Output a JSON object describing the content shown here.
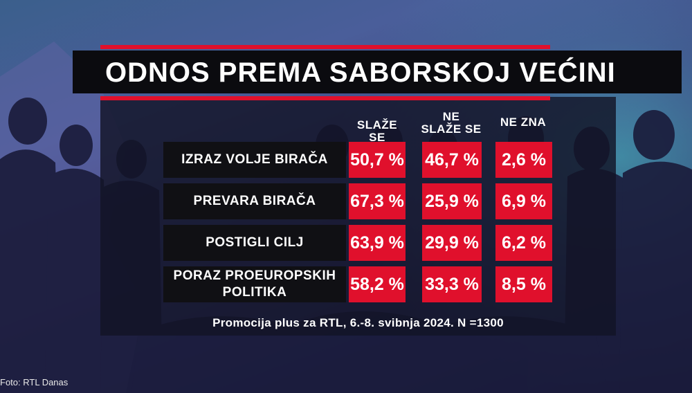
{
  "title": "ODNOS PREMA SABORSKOJ VEĆINI",
  "columns": [
    {
      "line1": "SLAŽE SE",
      "line2": ""
    },
    {
      "line1": "NE",
      "line2": "SLAŽE SE"
    },
    {
      "line1": "NE ZNA",
      "line2": ""
    }
  ],
  "rows": [
    {
      "label_line1": "IZRAZ VOLJE BIRAČA",
      "label_line2": "",
      "values": [
        "50,7 %",
        "46,7 %",
        "2,6 %"
      ]
    },
    {
      "label_line1": "PREVARA BIRAČA",
      "label_line2": "",
      "values": [
        "67,3 %",
        "25,9 %",
        "6,9 %"
      ]
    },
    {
      "label_line1": "POSTIGLI CILJ",
      "label_line2": "",
      "values": [
        "63,9 %",
        "29,9 %",
        "6,2 %"
      ]
    },
    {
      "label_line1": "PORAZ PROEUROPSKIH",
      "label_line2": "POLITIKA",
      "values": [
        "58,2 %",
        "33,3 %",
        "8,5 %"
      ]
    }
  ],
  "footnote": "Promocija plus za RTL, 6.-8. svibnja 2024. N =1300",
  "credit": "Foto: RTL Danas",
  "colors": {
    "accent_red": "#e0102c",
    "label_bg": "#101014",
    "panel_bg": "#12142699"
  }
}
